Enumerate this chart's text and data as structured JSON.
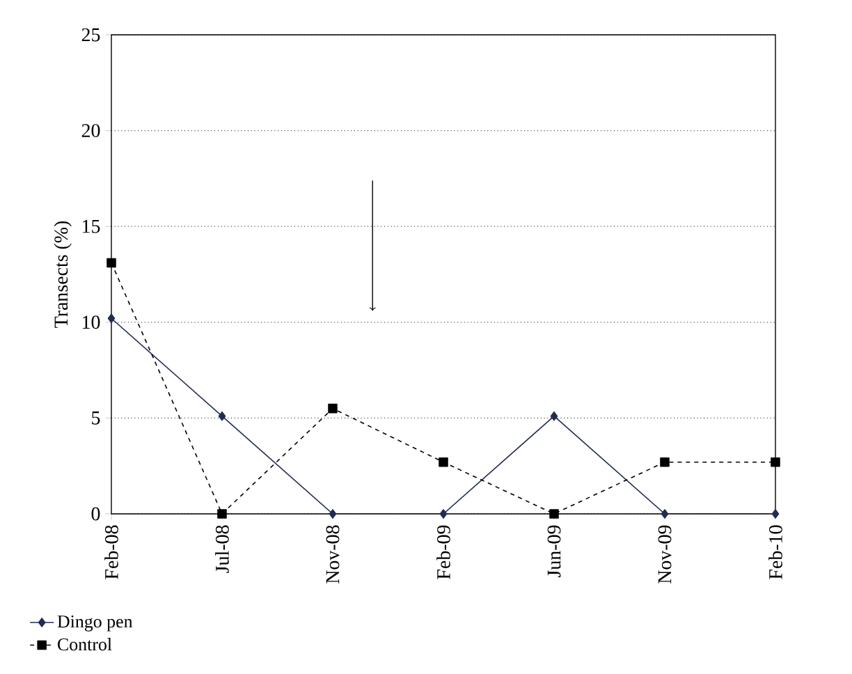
{
  "chart_data": {
    "type": "line",
    "ylabel": "Transects (%)",
    "categories": [
      "Feb-08",
      "Jul-08",
      "Nov-08",
      "Feb-09",
      "Jun-09",
      "Nov-09",
      "Feb-10"
    ],
    "series": [
      {
        "name": "Dingo pen",
        "color": "#1f2d50",
        "marker": "diamond",
        "line_style": "solid",
        "values": [
          10.2,
          5.1,
          0,
          0,
          5.1,
          0,
          0
        ]
      },
      {
        "name": "Control",
        "color": "#000000",
        "marker": "square",
        "line_style": "dashed",
        "values": [
          13.1,
          0,
          5.5,
          2.7,
          0,
          2.7,
          2.7
        ]
      }
    ],
    "ylim": [
      0,
      25
    ],
    "yticks": [
      0,
      5,
      10,
      15,
      20,
      25
    ],
    "grid": "y",
    "legend": "bottom left"
  }
}
